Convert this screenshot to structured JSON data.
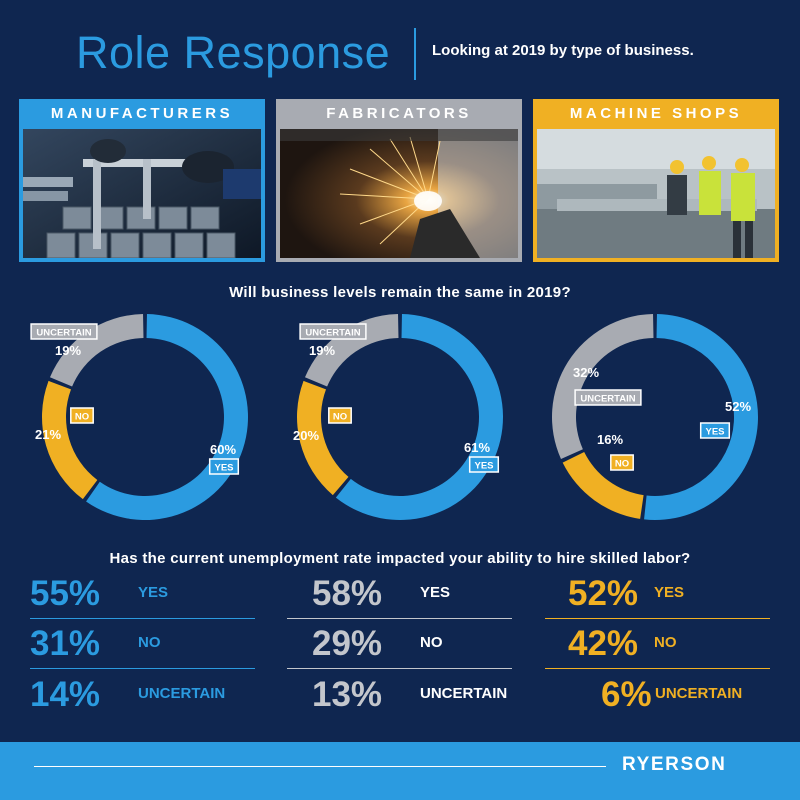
{
  "header": {
    "title": "Role Response",
    "subtitle": "Looking at 2019 by type of business."
  },
  "panels": [
    {
      "label": "MANUFACTURERS",
      "color": "#2b9be0",
      "image": "calipers-measuring-steel-icon"
    },
    {
      "label": "FABRICATORS",
      "color": "#a8abb2",
      "image": "welding-sparks-icon"
    },
    {
      "label": "MACHINE SHOPS",
      "color": "#f0b023",
      "image": "workers-in-machine-shop-icon"
    }
  ],
  "question1": "Will business levels remain the same in 2019?",
  "question2": "Has the current unemployment rate impacted your ability to hire skilled labor?",
  "chart_data": [
    {
      "type": "pie",
      "categories": [
        "YES",
        "NO",
        "UNCERTAIN"
      ],
      "values": [
        60,
        21,
        19
      ],
      "value_labels": [
        "60%",
        "21%",
        "19%"
      ],
      "colors": [
        "#2b9be0",
        "#f0b023",
        "#a8abb2"
      ]
    },
    {
      "type": "pie",
      "categories": [
        "YES",
        "NO",
        "UNCERTAIN"
      ],
      "values": [
        61,
        20,
        19
      ],
      "value_labels": [
        "61%",
        "20%",
        "19%"
      ],
      "colors": [
        "#2b9be0",
        "#f0b023",
        "#a8abb2"
      ]
    },
    {
      "type": "pie",
      "categories": [
        "YES",
        "NO",
        "UNCERTAIN"
      ],
      "values": [
        52,
        16,
        32
      ],
      "value_labels": [
        "52%",
        "16%",
        "32%"
      ],
      "colors": [
        "#2b9be0",
        "#f0b023",
        "#a8abb2"
      ]
    }
  ],
  "labor": [
    {
      "color": "#2b9be0",
      "rows": [
        {
          "pct": "55%",
          "label": "YES"
        },
        {
          "pct": "31%",
          "label": "NO"
        },
        {
          "pct": "14%",
          "label": "UNCERTAIN"
        }
      ]
    },
    {
      "color": "#c3c6cc",
      "rows": [
        {
          "pct": "58%",
          "label": "YES"
        },
        {
          "pct": "29%",
          "label": "NO"
        },
        {
          "pct": "13%",
          "label": "UNCERTAIN"
        }
      ]
    },
    {
      "color": "#f0b023",
      "rows": [
        {
          "pct": "52%",
          "label": "YES"
        },
        {
          "pct": "42%",
          "label": "NO"
        },
        {
          "pct": "6%",
          "label": "UNCERTAIN"
        }
      ]
    }
  ],
  "footer": {
    "brand": "RYERSON"
  }
}
